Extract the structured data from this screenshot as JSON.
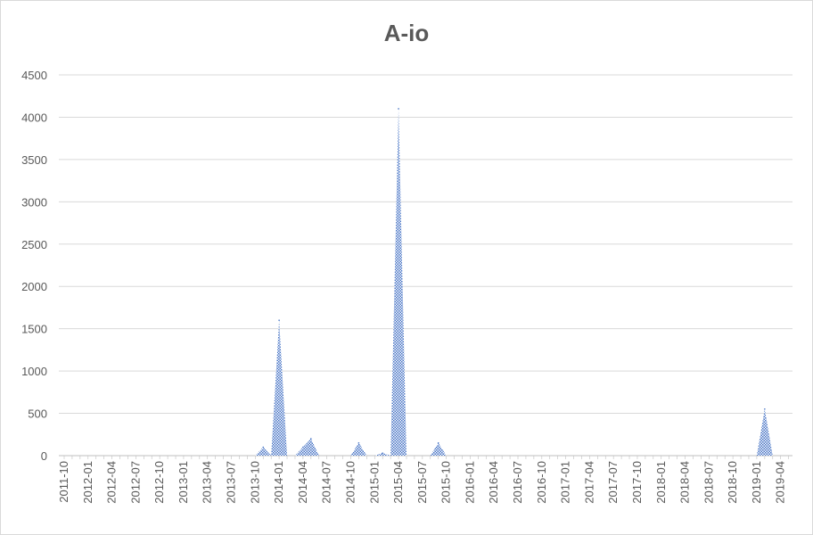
{
  "chart_data": {
    "type": "area",
    "title": "A-io",
    "xlabel": "",
    "ylabel": "",
    "ylim": [
      0,
      4500
    ],
    "yticks": [
      0,
      500,
      1000,
      1500,
      2000,
      2500,
      3000,
      3500,
      4000,
      4500
    ],
    "grid": true,
    "legend": "none",
    "fill_color": "#4472c4",
    "x_tick_labels": [
      "2011-10",
      "2012-01",
      "2012-04",
      "2012-07",
      "2012-10",
      "2013-01",
      "2013-04",
      "2013-07",
      "2013-10",
      "2014-01",
      "2014-04",
      "2014-07",
      "2014-10",
      "2015-01",
      "2015-04",
      "2015-07",
      "2015-10",
      "2016-01",
      "2016-04",
      "2016-07",
      "2016-10",
      "2017-01",
      "2017-04",
      "2017-07",
      "2017-10",
      "2018-01",
      "2018-04",
      "2018-07",
      "2018-10",
      "2019-01",
      "2019-04"
    ],
    "x": [
      "2011-10",
      "2011-11",
      "2011-12",
      "2012-01",
      "2012-02",
      "2012-03",
      "2012-04",
      "2012-05",
      "2012-06",
      "2012-07",
      "2012-08",
      "2012-09",
      "2012-10",
      "2012-11",
      "2012-12",
      "2013-01",
      "2013-02",
      "2013-03",
      "2013-04",
      "2013-05",
      "2013-06",
      "2013-07",
      "2013-08",
      "2013-09",
      "2013-10",
      "2013-11",
      "2013-12",
      "2014-01",
      "2014-02",
      "2014-03",
      "2014-04",
      "2014-05",
      "2014-06",
      "2014-07",
      "2014-08",
      "2014-09",
      "2014-10",
      "2014-11",
      "2014-12",
      "2015-01",
      "2015-02",
      "2015-03",
      "2015-04",
      "2015-05",
      "2015-06",
      "2015-07",
      "2015-08",
      "2015-09",
      "2015-10",
      "2015-11",
      "2015-12",
      "2016-01",
      "2016-02",
      "2016-03",
      "2016-04",
      "2016-05",
      "2016-06",
      "2016-07",
      "2016-08",
      "2016-09",
      "2016-10",
      "2016-11",
      "2016-12",
      "2017-01",
      "2017-02",
      "2017-03",
      "2017-04",
      "2017-05",
      "2017-06",
      "2017-07",
      "2017-08",
      "2017-09",
      "2017-10",
      "2017-11",
      "2017-12",
      "2018-01",
      "2018-02",
      "2018-03",
      "2018-04",
      "2018-05",
      "2018-06",
      "2018-07",
      "2018-08",
      "2018-09",
      "2018-10",
      "2018-11",
      "2018-12",
      "2019-01",
      "2019-02",
      "2019-03",
      "2019-04",
      "2019-05"
    ],
    "values": [
      0,
      0,
      0,
      0,
      0,
      0,
      0,
      0,
      0,
      0,
      0,
      0,
      0,
      0,
      0,
      0,
      0,
      0,
      0,
      0,
      0,
      0,
      0,
      0,
      0,
      100,
      0,
      1600,
      0,
      0,
      100,
      200,
      0,
      0,
      0,
      0,
      0,
      150,
      0,
      0,
      30,
      0,
      4100,
      0,
      0,
      0,
      0,
      150,
      0,
      0,
      0,
      0,
      0,
      0,
      0,
      0,
      0,
      0,
      0,
      0,
      0,
      0,
      0,
      0,
      0,
      0,
      0,
      0,
      0,
      0,
      0,
      0,
      0,
      0,
      0,
      0,
      0,
      0,
      0,
      0,
      0,
      0,
      0,
      0,
      0,
      0,
      0,
      0,
      550,
      0,
      0,
      0
    ]
  }
}
